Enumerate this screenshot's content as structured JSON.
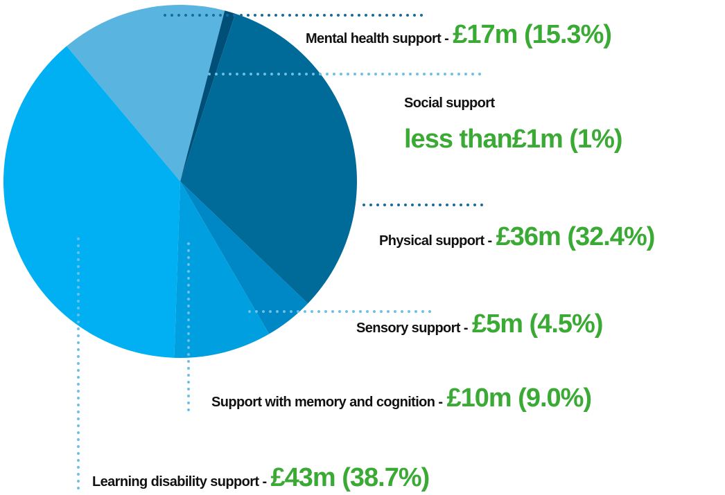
{
  "chart_data": {
    "type": "pie",
    "categories": [
      "Mental health support -",
      "Social support",
      "Physical support -",
      "Sensory support -",
      "Support with memory and cognition -",
      "Learning disability support -"
    ],
    "values": [
      15.3,
      1,
      32.4,
      4.5,
      9.0,
      38.7
    ],
    "value_labels": [
      "£17m (15.3%)",
      "less than£1m (1%)",
      "£36m (32.4%)",
      "£5m (4.5%)",
      "£10m (9.0%)",
      "£43m (38.7%)"
    ],
    "colors": [
      "#5ab4e0",
      "#004f78",
      "#006a99",
      "#0088c6",
      "#009fe0",
      "#00b0f2"
    ]
  }
}
